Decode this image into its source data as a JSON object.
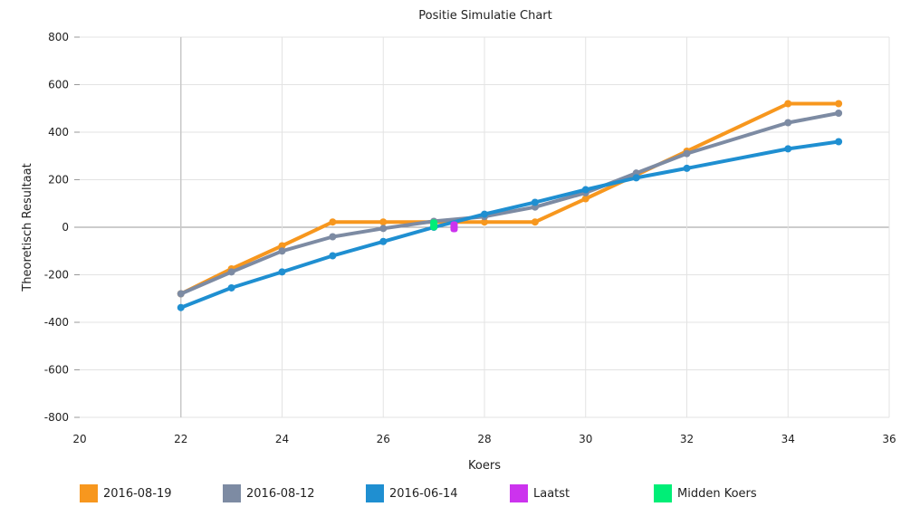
{
  "chart_data": {
    "type": "line",
    "title": "Positie Simulatie Chart",
    "xlabel": "Koers",
    "ylabel": "Theoretisch Resultaat",
    "xlim": [
      20,
      36
    ],
    "ylim": [
      -800,
      800
    ],
    "xticks": [
      20,
      22,
      24,
      26,
      28,
      30,
      32,
      34,
      36
    ],
    "yticks": [
      -800,
      -600,
      -400,
      -200,
      0,
      200,
      400,
      600,
      800
    ],
    "grid": true,
    "legend_position": "bottom",
    "series": [
      {
        "name": "2016-08-19",
        "color": "#f7971e",
        "points": [
          [
            22,
            -280
          ],
          [
            23,
            -175
          ],
          [
            24,
            -78
          ],
          [
            25,
            22
          ],
          [
            26,
            22
          ],
          [
            27,
            22
          ],
          [
            28,
            22
          ],
          [
            29,
            22
          ],
          [
            30,
            120
          ],
          [
            31,
            220
          ],
          [
            32,
            320
          ],
          [
            34,
            520
          ],
          [
            35,
            520
          ]
        ]
      },
      {
        "name": "2016-08-12",
        "color": "#7d8ba3",
        "points": [
          [
            22,
            -280
          ],
          [
            23,
            -188
          ],
          [
            24,
            -100
          ],
          [
            25,
            -40
          ],
          [
            26,
            -5
          ],
          [
            27,
            25
          ],
          [
            28,
            45
          ],
          [
            29,
            85
          ],
          [
            30,
            145
          ],
          [
            31,
            228
          ],
          [
            32,
            310
          ],
          [
            34,
            440
          ],
          [
            35,
            480
          ]
        ]
      },
      {
        "name": "2016-06-14",
        "color": "#1f8fd1",
        "points": [
          [
            22,
            -338
          ],
          [
            23,
            -255
          ],
          [
            24,
            -188
          ],
          [
            25,
            -120
          ],
          [
            26,
            -60
          ],
          [
            27,
            0
          ],
          [
            28,
            55
          ],
          [
            29,
            105
          ],
          [
            30,
            158
          ],
          [
            31,
            208
          ],
          [
            32,
            248
          ],
          [
            34,
            330
          ],
          [
            35,
            360
          ]
        ]
      },
      {
        "name": "Laatst",
        "color": "#cc33ee",
        "points": [
          [
            27.4,
            2
          ]
        ]
      },
      {
        "name": "Midden Koers",
        "color": "#00ee77",
        "points": [
          [
            27,
            10
          ]
        ]
      }
    ]
  }
}
